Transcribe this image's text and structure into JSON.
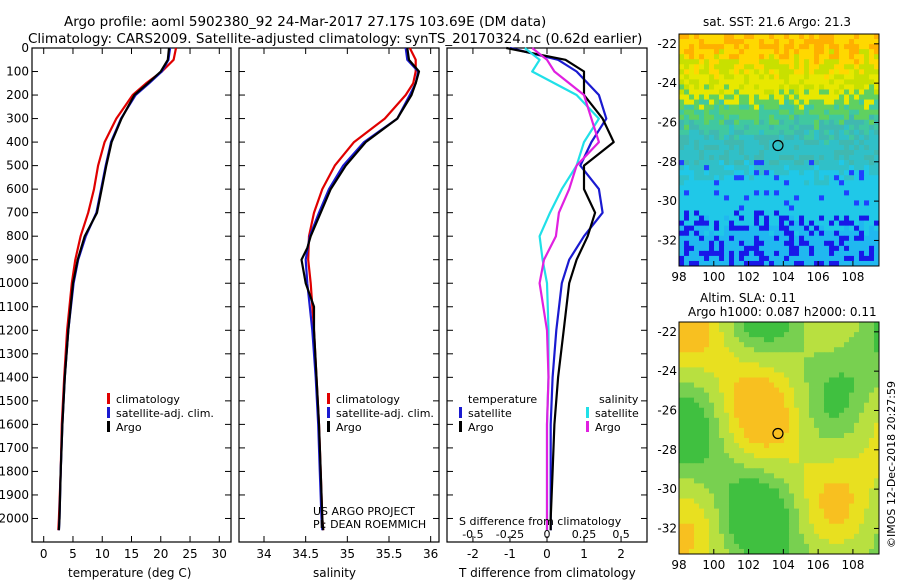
{
  "title_line1": "Argo profile: aoml 5902380_92 24-Mar-2017 27.17S 103.69E (DM data)",
  "title_line2": "Climatology: CARS2009. Satellite-adjusted climatology: synTS_20170324.nc (0.62d earlier)",
  "credit_project": "US ARGO PROJECT",
  "credit_pi": "PI: DEAN ROEMMICH",
  "copyright": "©IMOS 12-Dec-2018 20:27:59",
  "colors": {
    "climatology": "#e00000",
    "satellite": "#1a1ad0",
    "argo": "#000000",
    "salinity_sat": "#20e0e8",
    "salinity_argo": "#e020e0"
  },
  "chart_data": [
    {
      "type": "line",
      "name": "temperature-profile",
      "xlabel": "temperature (deg C)",
      "ylabel": "",
      "xlim": [
        -2,
        32
      ],
      "ylim": [
        2100,
        0
      ],
      "xticks": [
        "0",
        "5",
        "10",
        "15",
        "20",
        "25",
        "30"
      ],
      "yticks": [
        "0",
        "100",
        "200",
        "300",
        "400",
        "500",
        "600",
        "700",
        "800",
        "900",
        "1000",
        "1100",
        "1200",
        "1300",
        "1400",
        "1500",
        "1600",
        "1700",
        "1800",
        "1900",
        "2000"
      ],
      "legend": [
        "climatology",
        "satellite-adj. clim.",
        "Argo"
      ],
      "series": [
        {
          "name": "climatology",
          "depth": [
            0,
            50,
            100,
            150,
            200,
            300,
            400,
            500,
            600,
            700,
            800,
            900,
            1000,
            1200,
            1400,
            1600,
            1800,
            2000,
            2050
          ],
          "values": [
            22.6,
            22.2,
            20.2,
            17.5,
            15.2,
            12.4,
            10.4,
            9.3,
            8.6,
            7.6,
            6.3,
            5.4,
            4.8,
            4.0,
            3.5,
            3.1,
            2.9,
            2.6,
            2.5
          ]
        },
        {
          "name": "satellite-adj. clim.",
          "depth": [
            0,
            50,
            100,
            150,
            200,
            300,
            400,
            500,
            600,
            700,
            800,
            900,
            1000,
            1200,
            1400,
            1600,
            1800,
            2000,
            2050
          ],
          "values": [
            21.6,
            21.3,
            20.2,
            18.0,
            15.7,
            13.2,
            11.5,
            10.6,
            9.8,
            9.0,
            7.2,
            5.9,
            5.1,
            4.2,
            3.6,
            3.2,
            2.9,
            2.7,
            2.6
          ]
        },
        {
          "name": "Argo",
          "depth": [
            0,
            50,
            100,
            150,
            200,
            300,
            400,
            500,
            600,
            700,
            800,
            900,
            1000,
            1200,
            1400,
            1600,
            1800,
            2000,
            2050
          ],
          "values": [
            21.4,
            21.2,
            20.0,
            17.8,
            15.5,
            13.3,
            11.6,
            10.7,
            9.9,
            9.1,
            7.0,
            5.8,
            5.0,
            4.2,
            3.6,
            3.2,
            2.9,
            2.7,
            2.6
          ]
        }
      ]
    },
    {
      "type": "line",
      "name": "salinity-profile",
      "xlabel": "salinity",
      "xlim": [
        33.7,
        36.1
      ],
      "ylim": [
        2100,
        0
      ],
      "xticks": [
        "34",
        "34.5",
        "35",
        "35.5",
        "36"
      ],
      "legend": [
        "climatology",
        "satellite-adj. clim.",
        "Argo"
      ],
      "series": [
        {
          "name": "climatology",
          "depth": [
            0,
            50,
            100,
            150,
            200,
            300,
            400,
            500,
            600,
            700,
            800,
            900,
            1000,
            1200,
            1400,
            1600,
            1800,
            2000,
            2050
          ],
          "values": [
            35.75,
            35.82,
            35.82,
            35.79,
            35.7,
            35.45,
            35.08,
            34.85,
            34.7,
            34.6,
            34.54,
            34.53,
            34.56,
            34.6,
            34.63,
            34.66,
            34.68,
            34.7,
            34.71
          ]
        },
        {
          "name": "satellite-adj. clim.",
          "depth": [
            0,
            50,
            100,
            150,
            200,
            300,
            400,
            500,
            600,
            700,
            800,
            900,
            1000,
            1200,
            1400,
            1600,
            1800,
            2000,
            2050
          ],
          "values": [
            35.7,
            35.72,
            35.85,
            35.82,
            35.75,
            35.6,
            35.2,
            34.95,
            34.78,
            34.66,
            34.55,
            34.5,
            34.52,
            34.58,
            34.62,
            34.65,
            34.67,
            34.69,
            34.7
          ]
        },
        {
          "name": "Argo",
          "depth": [
            0,
            50,
            100,
            150,
            200,
            300,
            400,
            500,
            600,
            700,
            800,
            850,
            900,
            1000,
            1100,
            1200,
            1400,
            1600,
            1800,
            2000,
            2050
          ],
          "values": [
            35.72,
            35.74,
            35.86,
            35.82,
            35.77,
            35.6,
            35.22,
            34.98,
            34.8,
            34.68,
            34.56,
            34.52,
            34.45,
            34.5,
            34.6,
            34.6,
            34.63,
            34.66,
            34.68,
            34.7,
            34.71
          ]
        }
      ]
    },
    {
      "type": "line",
      "name": "difference-profile",
      "xlabel": "T difference from climatology",
      "xlabel_top": "S difference from climatology",
      "xlim": [
        -2.7,
        2.7
      ],
      "ylim": [
        2100,
        0
      ],
      "xticks": [
        "-2",
        "-1",
        "0",
        "1",
        "2"
      ],
      "xticks_salinity": [
        "-0.5",
        "-0.25",
        "0",
        "0.25",
        "0.5"
      ],
      "legend_temperature_title": "temperature",
      "legend_salinity_title": "salinity",
      "legend_temperature": [
        "satellite",
        "Argo"
      ],
      "legend_salinity": [
        "satellite",
        "Argo"
      ],
      "series": [
        {
          "name": "temperature satellite",
          "depth": [
            0,
            50,
            100,
            200,
            300,
            400,
            500,
            600,
            700,
            800,
            900,
            1000,
            1200,
            1400,
            1600,
            1800,
            2000,
            2050
          ],
          "values": [
            -1.0,
            0.3,
            0.8,
            1.4,
            1.6,
            1.2,
            0.9,
            1.4,
            1.5,
            1.0,
            0.6,
            0.4,
            0.25,
            0.15,
            0.1,
            0.1,
            0.1,
            0.1
          ]
        },
        {
          "name": "temperature Argo",
          "depth": [
            0,
            50,
            100,
            200,
            300,
            400,
            500,
            600,
            700,
            800,
            900,
            1000,
            1200,
            1400,
            1600,
            1800,
            2000,
            2050
          ],
          "values": [
            -1.1,
            0.5,
            1.0,
            1.0,
            1.5,
            1.8,
            1.0,
            1.0,
            1.3,
            1.1,
            0.8,
            0.6,
            0.45,
            0.3,
            0.2,
            0.15,
            0.1,
            0.1
          ]
        },
        {
          "name": "salinity satellite",
          "depth": [
            0,
            50,
            100,
            200,
            300,
            400,
            500,
            600,
            700,
            800,
            900,
            1000,
            1200,
            1400,
            1600,
            1800,
            2000,
            2050
          ],
          "values": [
            -0.15,
            -0.05,
            -0.1,
            0.2,
            0.35,
            0.25,
            0.2,
            0.1,
            0.02,
            -0.05,
            -0.03,
            0.0,
            0.01,
            0.01,
            0.0,
            0.0,
            0.0,
            0.0
          ]
        },
        {
          "name": "salinity Argo",
          "depth": [
            0,
            50,
            100,
            200,
            300,
            400,
            500,
            600,
            700,
            800,
            900,
            1000,
            1200,
            1400,
            1600,
            1800,
            2000,
            2050
          ],
          "values": [
            -0.1,
            0.0,
            0.05,
            0.25,
            0.3,
            0.35,
            0.2,
            0.15,
            0.08,
            0.06,
            -0.02,
            -0.05,
            0.0,
            0.01,
            0.0,
            0.0,
            0.0,
            0.0
          ]
        }
      ]
    },
    {
      "type": "heatmap",
      "name": "sst-map",
      "title": "sat. SST: 21.6 Argo: 21.3",
      "xticks": [
        "98",
        "100",
        "102",
        "104",
        "106",
        "108"
      ],
      "yticks": [
        "-22",
        "-24",
        "-26",
        "-28",
        "-30",
        "-32"
      ],
      "xlim": [
        98,
        109.5
      ],
      "ylim": [
        -33.3,
        -21.5
      ],
      "marker": {
        "lon": 103.69,
        "lat": -27.17
      }
    },
    {
      "type": "heatmap",
      "name": "sla-map",
      "title_line1": "Altim. SLA: 0.11",
      "title_line2": "Argo h1000: 0.087 h2000: 0.11",
      "xticks": [
        "98",
        "100",
        "102",
        "104",
        "106",
        "108"
      ],
      "yticks": [
        "-22",
        "-24",
        "-26",
        "-28",
        "-30",
        "-32"
      ],
      "xlim": [
        98,
        109.5
      ],
      "ylim": [
        -33.3,
        -21.5
      ],
      "marker": {
        "lon": 103.69,
        "lat": -27.17
      }
    }
  ]
}
